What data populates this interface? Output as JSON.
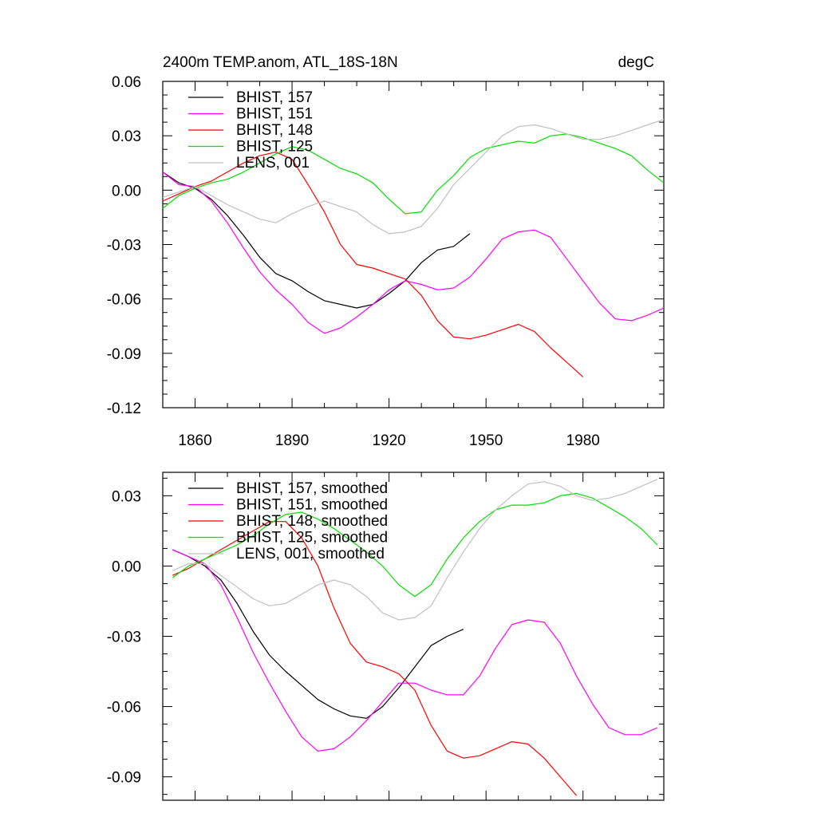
{
  "chart_data": [
    {
      "type": "line",
      "title": "2400m TEMP.anom, ATL_18S-18N",
      "units": "degC",
      "xlabel": "",
      "ylabel": "",
      "xlim": [
        1850,
        2005
      ],
      "ylim": [
        -0.12,
        0.06
      ],
      "xticks": [
        "1860",
        "1890",
        "1920",
        "1950",
        "1980"
      ],
      "yticks": [
        "0.06",
        "0.03",
        "0.00",
        "-0.03",
        "-0.06",
        "-0.09",
        "-0.12"
      ],
      "grid": false,
      "legend_position": "top-left",
      "series": [
        {
          "name": "BHIST, 157",
          "color": "#000000",
          "x": [
            1850,
            1855,
            1860,
            1865,
            1870,
            1875,
            1880,
            1885,
            1890,
            1895,
            1900,
            1905,
            1910,
            1915,
            1920,
            1925,
            1930,
            1935,
            1940,
            1945
          ],
          "y": [
            0.01,
            0.004,
            0.001,
            -0.005,
            -0.014,
            -0.025,
            -0.037,
            -0.046,
            -0.05,
            -0.056,
            -0.061,
            -0.063,
            -0.065,
            -0.063,
            -0.057,
            -0.05,
            -0.04,
            -0.033,
            -0.031,
            -0.024
          ]
        },
        {
          "name": "BHIST, 151",
          "color": "#ff00ff",
          "x": [
            1850,
            1855,
            1860,
            1865,
            1870,
            1875,
            1880,
            1885,
            1890,
            1895,
            1900,
            1905,
            1910,
            1915,
            1920,
            1925,
            1930,
            1935,
            1940,
            1945,
            1950,
            1955,
            1960,
            1965,
            1970,
            1975,
            1980,
            1985,
            1990,
            1995,
            2000,
            2005
          ],
          "y": [
            0.01,
            0.003,
            0.002,
            -0.006,
            -0.018,
            -0.032,
            -0.045,
            -0.055,
            -0.063,
            -0.073,
            -0.079,
            -0.076,
            -0.07,
            -0.063,
            -0.055,
            -0.05,
            -0.052,
            -0.055,
            -0.054,
            -0.048,
            -0.038,
            -0.027,
            -0.023,
            -0.022,
            -0.026,
            -0.038,
            -0.05,
            -0.062,
            -0.071,
            -0.072,
            -0.069,
            -0.065
          ]
        },
        {
          "name": "BHIST, 148",
          "color": "#ff0000",
          "x": [
            1850,
            1855,
            1860,
            1865,
            1870,
            1875,
            1880,
            1885,
            1890,
            1895,
            1900,
            1905,
            1910,
            1915,
            1920,
            1925,
            1930,
            1935,
            1940,
            1945,
            1950,
            1955,
            1960,
            1965,
            1970,
            1975,
            1980
          ],
          "y": [
            -0.006,
            -0.002,
            0.002,
            0.005,
            0.01,
            0.015,
            0.019,
            0.021,
            0.017,
            0.003,
            -0.012,
            -0.03,
            -0.041,
            -0.043,
            -0.046,
            -0.049,
            -0.058,
            -0.072,
            -0.081,
            -0.082,
            -0.08,
            -0.077,
            -0.074,
            -0.078,
            -0.087,
            -0.095,
            -0.103
          ]
        },
        {
          "name": "BHIST, 125",
          "color": "#00e000",
          "x": [
            1850,
            1855,
            1860,
            1865,
            1870,
            1875,
            1880,
            1885,
            1890,
            1895,
            1900,
            1905,
            1910,
            1915,
            1920,
            1925,
            1930,
            1935,
            1940,
            1945,
            1950,
            1955,
            1960,
            1965,
            1970,
            1975,
            1980,
            1985,
            1990,
            1995,
            2000,
            2005
          ],
          "y": [
            -0.01,
            -0.003,
            0.001,
            0.004,
            0.006,
            0.01,
            0.015,
            0.02,
            0.024,
            0.022,
            0.017,
            0.012,
            0.009,
            0.004,
            -0.005,
            -0.013,
            -0.012,
            0.0,
            0.008,
            0.018,
            0.023,
            0.025,
            0.027,
            0.026,
            0.03,
            0.031,
            0.029,
            0.026,
            0.023,
            0.019,
            0.011,
            0.004
          ]
        },
        {
          "name": "LENS, 001",
          "color": "#bfbfbf",
          "x": [
            1850,
            1855,
            1860,
            1865,
            1870,
            1875,
            1880,
            1885,
            1890,
            1895,
            1900,
            1905,
            1910,
            1915,
            1920,
            1925,
            1930,
            1935,
            1940,
            1945,
            1950,
            1955,
            1960,
            1965,
            1970,
            1975,
            1980,
            1985,
            1990,
            1995,
            2000,
            2005
          ],
          "y": [
            -0.004,
            -0.001,
            0.002,
            -0.003,
            -0.008,
            -0.012,
            -0.016,
            -0.018,
            -0.013,
            -0.009,
            -0.006,
            -0.009,
            -0.012,
            -0.019,
            -0.024,
            -0.023,
            -0.02,
            -0.01,
            0.003,
            0.012,
            0.021,
            0.03,
            0.035,
            0.036,
            0.034,
            0.031,
            0.028,
            0.028,
            0.03,
            0.033,
            0.036,
            0.039
          ]
        }
      ]
    },
    {
      "type": "line",
      "title": "",
      "units": "",
      "xlabel": "",
      "ylabel": "",
      "xlim": [
        1850,
        2005
      ],
      "ylim": [
        -0.1,
        0.04
      ],
      "xticks": [],
      "yticks": [
        "0.03",
        "0.00",
        "-0.03",
        "-0.06",
        "-0.09"
      ],
      "grid": false,
      "legend_position": "top-left",
      "series": [
        {
          "name": "BHIST, 157, smoothed",
          "color": "#000000",
          "x": [
            1853,
            1858,
            1863,
            1868,
            1873,
            1878,
            1883,
            1888,
            1893,
            1898,
            1903,
            1908,
            1913,
            1918,
            1923,
            1928,
            1933,
            1938,
            1943
          ],
          "y": [
            0.007,
            0.004,
            0.0,
            -0.006,
            -0.016,
            -0.028,
            -0.038,
            -0.045,
            -0.051,
            -0.057,
            -0.061,
            -0.064,
            -0.065,
            -0.06,
            -0.052,
            -0.043,
            -0.034,
            -0.03,
            -0.027
          ]
        },
        {
          "name": "BHIST, 151, smoothed",
          "color": "#ff00ff",
          "x": [
            1853,
            1858,
            1863,
            1868,
            1873,
            1878,
            1883,
            1888,
            1893,
            1898,
            1903,
            1908,
            1913,
            1918,
            1923,
            1928,
            1933,
            1938,
            1943,
            1948,
            1953,
            1958,
            1963,
            1968,
            1973,
            1978,
            1983,
            1988,
            1993,
            1998,
            2003
          ],
          "y": [
            0.007,
            0.004,
            0.001,
            -0.008,
            -0.022,
            -0.037,
            -0.05,
            -0.062,
            -0.073,
            -0.079,
            -0.078,
            -0.073,
            -0.066,
            -0.058,
            -0.05,
            -0.05,
            -0.053,
            -0.055,
            -0.055,
            -0.047,
            -0.035,
            -0.025,
            -0.023,
            -0.024,
            -0.033,
            -0.047,
            -0.059,
            -0.069,
            -0.072,
            -0.072,
            -0.069
          ]
        },
        {
          "name": "BHIST, 148, smoothed",
          "color": "#ff0000",
          "x": [
            1853,
            1858,
            1863,
            1868,
            1873,
            1878,
            1883,
            1888,
            1893,
            1898,
            1903,
            1908,
            1913,
            1918,
            1923,
            1928,
            1933,
            1938,
            1943,
            1948,
            1953,
            1958,
            1963,
            1968,
            1973,
            1978
          ],
          "y": [
            -0.004,
            -0.001,
            0.003,
            0.007,
            0.011,
            0.015,
            0.019,
            0.019,
            0.012,
            0.0,
            -0.018,
            -0.033,
            -0.041,
            -0.043,
            -0.046,
            -0.053,
            -0.068,
            -0.079,
            -0.082,
            -0.081,
            -0.078,
            -0.075,
            -0.076,
            -0.082,
            -0.09,
            -0.098
          ]
        },
        {
          "name": "BHIST, 125, smoothed",
          "color": "#00e000",
          "x": [
            1853,
            1858,
            1863,
            1868,
            1873,
            1878,
            1883,
            1888,
            1893,
            1898,
            1903,
            1908,
            1913,
            1918,
            1923,
            1928,
            1933,
            1938,
            1943,
            1948,
            1953,
            1958,
            1963,
            1968,
            1973,
            1978,
            1983,
            1988,
            1993,
            1998,
            2003
          ],
          "y": [
            -0.005,
            0.0,
            0.003,
            0.006,
            0.009,
            0.013,
            0.018,
            0.022,
            0.023,
            0.02,
            0.016,
            0.011,
            0.006,
            0.0,
            -0.008,
            -0.013,
            -0.008,
            0.003,
            0.012,
            0.019,
            0.024,
            0.026,
            0.026,
            0.027,
            0.03,
            0.031,
            0.029,
            0.025,
            0.021,
            0.016,
            0.009
          ]
        },
        {
          "name": "LENS, 001, smoothed",
          "color": "#bfbfbf",
          "x": [
            1853,
            1858,
            1863,
            1868,
            1873,
            1878,
            1883,
            1888,
            1893,
            1898,
            1903,
            1908,
            1913,
            1918,
            1923,
            1928,
            1933,
            1938,
            1943,
            1948,
            1953,
            1958,
            1963,
            1968,
            1973,
            1978,
            1983,
            1988,
            1993,
            1998,
            2003
          ],
          "y": [
            -0.002,
            0.001,
            0.001,
            -0.004,
            -0.009,
            -0.014,
            -0.017,
            -0.016,
            -0.012,
            -0.008,
            -0.006,
            -0.008,
            -0.013,
            -0.02,
            -0.023,
            -0.022,
            -0.017,
            -0.005,
            0.006,
            0.016,
            0.024,
            0.03,
            0.035,
            0.036,
            0.034,
            0.03,
            0.028,
            0.029,
            0.031,
            0.034,
            0.037
          ]
        }
      ]
    }
  ]
}
